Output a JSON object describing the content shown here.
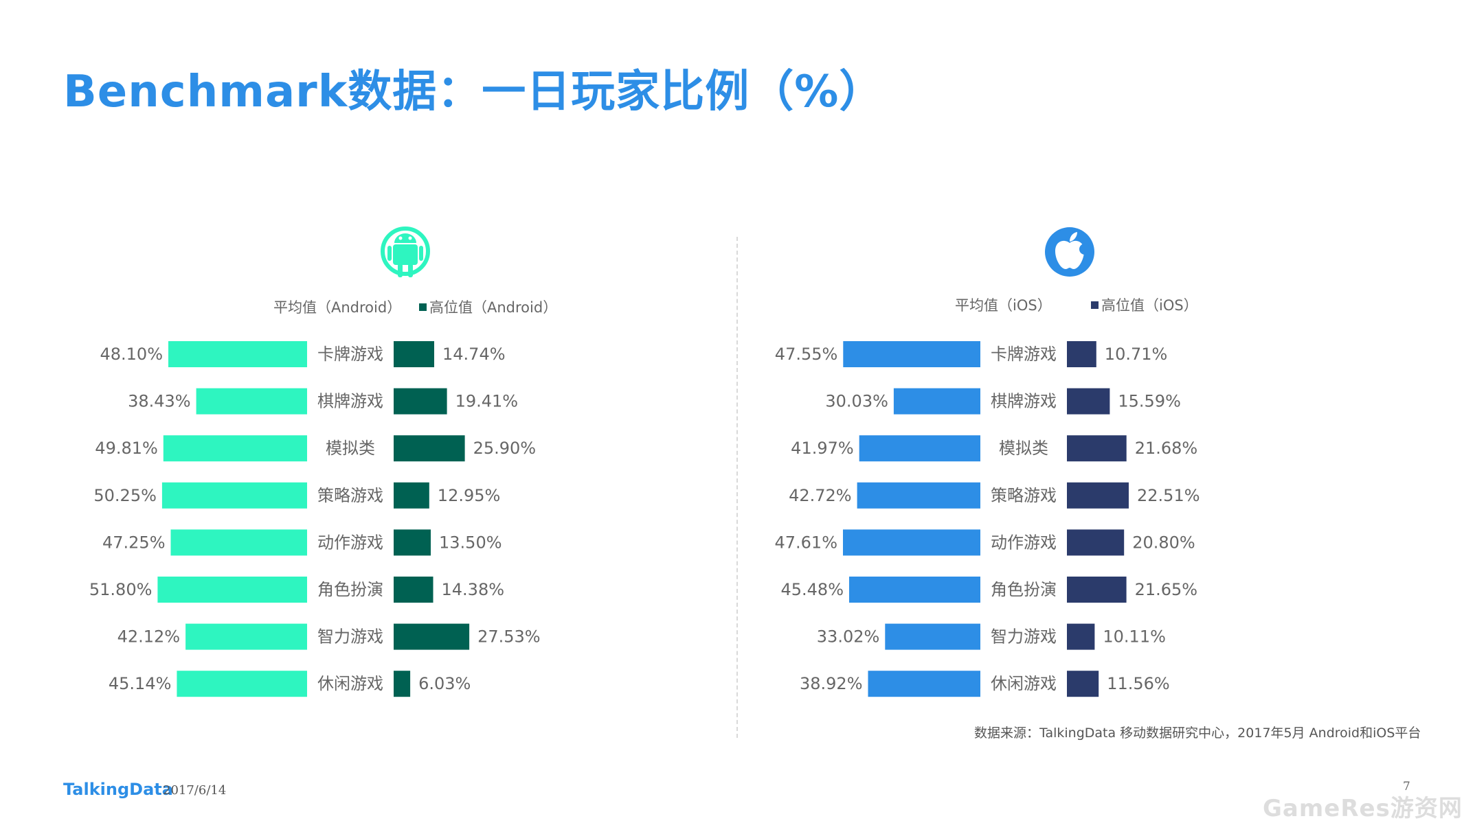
{
  "title": "Benchmark数据：一日玩家比例（%）",
  "colors": {
    "title": "#2d8ee6",
    "android_avg": "#2ef5c0",
    "android_high": "#006152",
    "ios_avg": "#2d8ee6",
    "ios_high": "#2b3b6b",
    "label_text": "#666666"
  },
  "chart_data": [
    {
      "type": "bar",
      "platform_icon": "android-icon",
      "categories": [
        "卡牌游戏",
        "棋牌游戏",
        "模拟类",
        "策略游戏",
        "动作游戏",
        "角色扮演",
        "智力游戏",
        "休闲游戏"
      ],
      "series": [
        {
          "name": "平均值（Android）",
          "values": [
            48.1,
            38.43,
            49.81,
            50.25,
            47.25,
            51.8,
            42.12,
            45.14
          ],
          "labels": [
            "48.10%",
            "38.43%",
            "49.81%",
            "50.25%",
            "47.25%",
            "51.80%",
            "42.12%",
            "45.14%"
          ]
        },
        {
          "name": "高位值（Android）",
          "values": [
            14.74,
            19.41,
            25.9,
            12.95,
            13.5,
            14.38,
            27.53,
            6.03
          ],
          "labels": [
            "14.74%",
            "19.41%",
            "25.90%",
            "12.95%",
            "13.50%",
            "14.38%",
            "27.53%",
            "6.03%"
          ]
        }
      ],
      "legend_position": "top",
      "grid": false
    },
    {
      "type": "bar",
      "platform_icon": "apple-icon",
      "categories": [
        "卡牌游戏",
        "棋牌游戏",
        "模拟类",
        "策略游戏",
        "动作游戏",
        "角色扮演",
        "智力游戏",
        "休闲游戏"
      ],
      "series": [
        {
          "name": "平均值（iOS）",
          "values": [
            47.55,
            30.03,
            41.97,
            42.72,
            47.61,
            45.48,
            33.02,
            38.92
          ],
          "labels": [
            "47.55%",
            "30.03%",
            "41.97%",
            "42.72%",
            "47.61%",
            "45.48%",
            "33.02%",
            "38.92%"
          ]
        },
        {
          "name": "高位值（iOS）",
          "values": [
            10.71,
            15.59,
            21.68,
            22.51,
            20.8,
            21.65,
            10.11,
            11.56
          ],
          "labels": [
            "10.71%",
            "15.59%",
            "21.68%",
            "22.51%",
            "20.80%",
            "21.65%",
            "10.11%",
            "11.56%"
          ]
        }
      ],
      "legend_position": "top",
      "grid": false
    }
  ],
  "source": "数据来源：TalkingData 移动数据研究中心，2017年5月 Android和iOS平台",
  "footer": {
    "logo": "TalkingData",
    "date": "2017/6/14",
    "page": "7"
  },
  "watermark": "GameRes游资网"
}
